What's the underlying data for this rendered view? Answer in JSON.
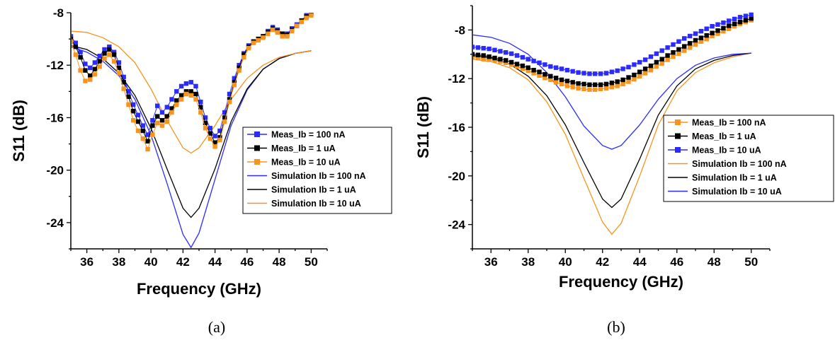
{
  "chart_data": [
    {
      "type": "line",
      "caption": "(a)",
      "xlabel": "Frequency (GHz)",
      "ylabel": "S11 (dB)",
      "xlim": [
        35,
        51
      ],
      "ylim": [
        -26,
        -8
      ],
      "xticks": [
        36,
        38,
        40,
        42,
        44,
        46,
        48,
        50
      ],
      "yticks": [
        -24,
        -20,
        -16,
        -12,
        -8
      ],
      "grid": false,
      "legend_position": "center-right",
      "series": [
        {
          "name": "Meas_Ib = 100 nA",
          "kind": "marker",
          "color": "#2b2bff",
          "x": [
            35.0,
            35.3,
            35.6,
            35.9,
            36.2,
            36.5,
            36.8,
            37.1,
            37.4,
            37.7,
            38.0,
            38.3,
            38.6,
            38.9,
            39.2,
            39.5,
            39.8,
            40.1,
            40.4,
            40.7,
            41.0,
            41.3,
            41.6,
            41.9,
            42.2,
            42.5,
            42.8,
            43.1,
            43.4,
            43.7,
            44.0,
            44.3,
            44.6,
            44.9,
            45.2,
            45.5,
            45.8,
            46.1,
            46.4,
            46.7,
            47.0,
            47.3,
            47.6,
            47.9,
            48.2,
            48.5,
            48.8,
            49.1,
            49.4,
            49.7,
            50.0
          ],
          "y": [
            -9.8,
            -10.3,
            -11.0,
            -11.9,
            -12.2,
            -11.8,
            -11.3,
            -10.8,
            -10.6,
            -11.0,
            -11.8,
            -12.9,
            -14.0,
            -15.0,
            -15.8,
            -16.6,
            -17.3,
            -16.2,
            -15.1,
            -15.6,
            -15.2,
            -14.6,
            -14.0,
            -13.6,
            -13.4,
            -13.3,
            -13.6,
            -14.8,
            -16.0,
            -16.8,
            -17.4,
            -17.0,
            -15.6,
            -14.2,
            -13.0,
            -12.0,
            -11.1,
            -10.5,
            -10.2,
            -10.0,
            -9.8,
            -9.4,
            -9.1,
            -9.3,
            -9.6,
            -9.6,
            -9.2,
            -8.9,
            -8.6,
            -8.2,
            -8.0
          ]
        },
        {
          "name": "Meas_Ib = 1 uA",
          "kind": "marker",
          "color": "#000000",
          "x": [
            35.0,
            35.3,
            35.6,
            35.9,
            36.2,
            36.5,
            36.8,
            37.1,
            37.4,
            37.7,
            38.0,
            38.3,
            38.6,
            38.9,
            39.2,
            39.5,
            39.8,
            40.1,
            40.4,
            40.7,
            41.0,
            41.3,
            41.6,
            41.9,
            42.2,
            42.5,
            42.8,
            43.1,
            43.4,
            43.7,
            44.0,
            44.3,
            44.6,
            44.9,
            45.2,
            45.5,
            45.8,
            46.1,
            46.4,
            46.7,
            47.0,
            47.3,
            47.6,
            47.9,
            48.2,
            48.5,
            48.8,
            49.1,
            49.4,
            49.7,
            50.0
          ],
          "y": [
            -10.0,
            -10.6,
            -11.4,
            -12.4,
            -12.8,
            -12.3,
            -11.7,
            -11.1,
            -10.8,
            -11.2,
            -12.2,
            -13.3,
            -14.4,
            -15.5,
            -16.3,
            -17.0,
            -17.8,
            -16.6,
            -15.9,
            -16.2,
            -15.9,
            -15.3,
            -14.7,
            -14.3,
            -14.0,
            -14.0,
            -14.2,
            -15.2,
            -16.4,
            -17.2,
            -17.9,
            -17.5,
            -16.0,
            -14.6,
            -13.3,
            -12.2,
            -11.2,
            -10.6,
            -10.2,
            -10.0,
            -9.8,
            -9.5,
            -9.2,
            -9.4,
            -9.6,
            -9.7,
            -9.3,
            -9.0,
            -8.6,
            -8.3,
            -8.1
          ]
        },
        {
          "name": "Meas_Ib = 10 uA",
          "kind": "marker",
          "color": "#f7941d",
          "x": [
            35.0,
            35.3,
            35.6,
            35.9,
            36.2,
            36.5,
            36.8,
            37.1,
            37.4,
            37.7,
            38.0,
            38.3,
            38.6,
            38.9,
            39.2,
            39.5,
            39.8,
            40.1,
            40.4,
            40.7,
            41.0,
            41.3,
            41.6,
            41.9,
            42.2,
            42.5,
            42.8,
            43.1,
            43.4,
            43.7,
            44.0,
            44.3,
            44.6,
            44.9,
            45.2,
            45.5,
            45.8,
            46.1,
            46.4,
            46.7,
            47.0,
            47.3,
            47.6,
            47.9,
            48.2,
            48.5,
            48.8,
            49.1,
            49.4,
            49.7,
            50.0
          ],
          "y": [
            -10.2,
            -11.2,
            -12.4,
            -13.2,
            -13.1,
            -12.7,
            -12.1,
            -11.5,
            -11.2,
            -11.7,
            -12.6,
            -13.8,
            -15.0,
            -16.2,
            -17.0,
            -17.6,
            -18.4,
            -17.3,
            -16.4,
            -16.6,
            -16.3,
            -15.6,
            -15.0,
            -14.6,
            -14.2,
            -14.3,
            -14.6,
            -15.6,
            -16.8,
            -17.6,
            -18.2,
            -17.7,
            -16.3,
            -14.8,
            -13.5,
            -12.4,
            -11.4,
            -10.7,
            -10.3,
            -10.1,
            -9.9,
            -9.6,
            -9.3,
            -9.5,
            -9.8,
            -9.8,
            -9.4,
            -9.0,
            -8.7,
            -8.4,
            -8.2
          ]
        },
        {
          "name": "Simulation Ib = 100 nA",
          "kind": "line",
          "color": "#2b2bff",
          "x": [
            35,
            36,
            37,
            38,
            39,
            40,
            41,
            42,
            42.5,
            43,
            44,
            45,
            46,
            47,
            48,
            49,
            50
          ],
          "y": [
            -10.6,
            -11.0,
            -11.7,
            -12.8,
            -14.6,
            -17.3,
            -21.0,
            -24.9,
            -25.9,
            -24.8,
            -20.7,
            -16.6,
            -13.9,
            -12.3,
            -11.5,
            -11.1,
            -10.9
          ]
        },
        {
          "name": "Simulation Ib = 1 uA",
          "kind": "line",
          "color": "#000000",
          "x": [
            35,
            36,
            37,
            38,
            39,
            40,
            41,
            42,
            42.5,
            43,
            44,
            45,
            46,
            47,
            48,
            49,
            50
          ],
          "y": [
            -10.5,
            -10.8,
            -11.5,
            -12.6,
            -14.3,
            -16.8,
            -19.9,
            -22.9,
            -23.6,
            -22.9,
            -19.9,
            -16.3,
            -13.8,
            -12.3,
            -11.5,
            -11.1,
            -10.9
          ]
        },
        {
          "name": "Simulation Ib = 10 uA",
          "kind": "line",
          "color": "#f7941d",
          "x": [
            35,
            36,
            37,
            38,
            39,
            40,
            41,
            42,
            42.5,
            43,
            44,
            45,
            46,
            47,
            48,
            49,
            50
          ],
          "y": [
            -9.4,
            -9.5,
            -9.9,
            -10.6,
            -11.8,
            -13.8,
            -16.2,
            -18.3,
            -18.7,
            -18.3,
            -16.6,
            -14.6,
            -13.0,
            -12.0,
            -11.4,
            -11.1,
            -10.9
          ]
        }
      ]
    },
    {
      "type": "line",
      "caption": "(b)",
      "xlabel": "Frequency (GHz)",
      "ylabel": "S11 (dB)",
      "xlim": [
        35,
        51
      ],
      "ylim": [
        -26,
        -6
      ],
      "xticks": [
        36,
        38,
        40,
        42,
        44,
        46,
        48,
        50
      ],
      "yticks": [
        -24,
        -20,
        -16,
        -12,
        -8
      ],
      "grid": false,
      "legend_position": "center-right",
      "series": [
        {
          "name": "Meas_Ib = 100 nA",
          "kind": "marker",
          "color": "#f7941d",
          "x": [
            35.0,
            35.3,
            35.6,
            35.9,
            36.2,
            36.5,
            36.8,
            37.1,
            37.4,
            37.7,
            38.0,
            38.3,
            38.6,
            38.9,
            39.2,
            39.5,
            39.8,
            40.1,
            40.4,
            40.7,
            41.0,
            41.3,
            41.6,
            41.9,
            42.2,
            42.5,
            42.8,
            43.1,
            43.4,
            43.7,
            44.0,
            44.3,
            44.6,
            44.9,
            45.2,
            45.5,
            45.8,
            46.1,
            46.4,
            46.7,
            47.0,
            47.3,
            47.6,
            47.9,
            48.2,
            48.5,
            48.8,
            49.1,
            49.4,
            49.7,
            50.0
          ],
          "y": [
            -10.2,
            -10.3,
            -10.4,
            -10.45,
            -10.5,
            -10.6,
            -10.7,
            -10.85,
            -11.0,
            -11.2,
            -11.35,
            -11.55,
            -11.75,
            -11.95,
            -12.1,
            -12.3,
            -12.45,
            -12.6,
            -12.7,
            -12.8,
            -12.85,
            -12.9,
            -12.9,
            -12.85,
            -12.8,
            -12.7,
            -12.6,
            -12.45,
            -12.25,
            -12.05,
            -11.8,
            -11.55,
            -11.3,
            -11.0,
            -10.75,
            -10.45,
            -10.2,
            -9.95,
            -9.7,
            -9.45,
            -9.2,
            -8.95,
            -8.75,
            -8.5,
            -8.3,
            -8.1,
            -7.9,
            -7.7,
            -7.5,
            -7.35,
            -7.2
          ]
        },
        {
          "name": "Meas_Ib = 1 uA",
          "kind": "marker",
          "color": "#000000",
          "x": [
            35.0,
            35.3,
            35.6,
            35.9,
            36.2,
            36.5,
            36.8,
            37.1,
            37.4,
            37.7,
            38.0,
            38.3,
            38.6,
            38.9,
            39.2,
            39.5,
            39.8,
            40.1,
            40.4,
            40.7,
            41.0,
            41.3,
            41.6,
            41.9,
            42.2,
            42.5,
            42.8,
            43.1,
            43.4,
            43.7,
            44.0,
            44.3,
            44.6,
            44.9,
            45.2,
            45.5,
            45.8,
            46.1,
            46.4,
            46.7,
            47.0,
            47.3,
            47.6,
            47.9,
            48.2,
            48.5,
            48.8,
            49.1,
            49.4,
            49.7,
            50.0
          ],
          "y": [
            -10.0,
            -10.05,
            -10.1,
            -10.2,
            -10.3,
            -10.4,
            -10.5,
            -10.65,
            -10.8,
            -10.95,
            -11.1,
            -11.3,
            -11.45,
            -11.65,
            -11.8,
            -11.95,
            -12.1,
            -12.2,
            -12.3,
            -12.4,
            -12.45,
            -12.5,
            -12.5,
            -12.5,
            -12.45,
            -12.35,
            -12.25,
            -12.1,
            -11.9,
            -11.7,
            -11.45,
            -11.2,
            -10.95,
            -10.65,
            -10.4,
            -10.1,
            -9.85,
            -9.6,
            -9.35,
            -9.1,
            -8.85,
            -8.65,
            -8.45,
            -8.25,
            -8.05,
            -7.85,
            -7.65,
            -7.5,
            -7.35,
            -7.2,
            -7.05
          ]
        },
        {
          "name": "Meas_Ib = 10 uA",
          "kind": "marker",
          "color": "#2b2bff",
          "x": [
            35.0,
            35.3,
            35.6,
            35.9,
            36.2,
            36.5,
            36.8,
            37.1,
            37.4,
            37.7,
            38.0,
            38.3,
            38.6,
            38.9,
            39.2,
            39.5,
            39.8,
            40.1,
            40.4,
            40.7,
            41.0,
            41.3,
            41.6,
            41.9,
            42.2,
            42.5,
            42.8,
            43.1,
            43.4,
            43.7,
            44.0,
            44.3,
            44.6,
            44.9,
            45.2,
            45.5,
            45.8,
            46.1,
            46.4,
            46.7,
            47.0,
            47.3,
            47.6,
            47.9,
            48.2,
            48.5,
            48.8,
            49.1,
            49.4,
            49.7,
            50.0
          ],
          "y": [
            -9.4,
            -9.45,
            -9.5,
            -9.55,
            -9.65,
            -9.75,
            -9.85,
            -9.95,
            -10.1,
            -10.25,
            -10.4,
            -10.55,
            -10.7,
            -10.85,
            -11.0,
            -11.1,
            -11.2,
            -11.3,
            -11.4,
            -11.5,
            -11.55,
            -11.6,
            -11.6,
            -11.6,
            -11.55,
            -11.45,
            -11.35,
            -11.2,
            -11.05,
            -10.85,
            -10.65,
            -10.45,
            -10.2,
            -9.95,
            -9.7,
            -9.45,
            -9.2,
            -8.95,
            -8.7,
            -8.5,
            -8.3,
            -8.1,
            -7.9,
            -7.7,
            -7.55,
            -7.4,
            -7.25,
            -7.1,
            -6.95,
            -6.85,
            -6.75
          ]
        },
        {
          "name": "Simulation Ib = 100 nA",
          "kind": "line",
          "color": "#f7941d",
          "x": [
            35,
            36,
            37,
            38,
            39,
            40,
            41,
            42,
            42.5,
            43,
            44,
            45,
            46,
            47,
            48,
            49,
            50
          ],
          "y": [
            -10.4,
            -10.6,
            -11.1,
            -12.1,
            -13.9,
            -16.6,
            -20.2,
            -23.8,
            -24.8,
            -23.9,
            -20.0,
            -15.8,
            -13.0,
            -11.5,
            -10.7,
            -10.2,
            -9.9
          ]
        },
        {
          "name": "Simulation Ib = 1 uA",
          "kind": "line",
          "color": "#000000",
          "x": [
            35,
            36,
            37,
            38,
            39,
            40,
            41,
            42,
            42.5,
            43,
            44,
            45,
            46,
            47,
            48,
            49,
            50
          ],
          "y": [
            -10.1,
            -10.3,
            -10.8,
            -11.8,
            -13.4,
            -15.8,
            -18.9,
            -21.9,
            -22.6,
            -21.9,
            -18.6,
            -15.0,
            -12.6,
            -11.2,
            -10.5,
            -10.1,
            -9.9
          ]
        },
        {
          "name": "Simulation Ib = 10 uA",
          "kind": "line",
          "color": "#2b2bff",
          "x": [
            35,
            36,
            37,
            38,
            39,
            40,
            41,
            42,
            42.5,
            43,
            44,
            45,
            46,
            47,
            48,
            49,
            50
          ],
          "y": [
            -8.4,
            -8.6,
            -9.1,
            -10.0,
            -11.5,
            -13.5,
            -15.9,
            -17.5,
            -17.8,
            -17.5,
            -15.8,
            -13.7,
            -12.0,
            -10.9,
            -10.3,
            -10.0,
            -9.9
          ]
        }
      ]
    }
  ]
}
